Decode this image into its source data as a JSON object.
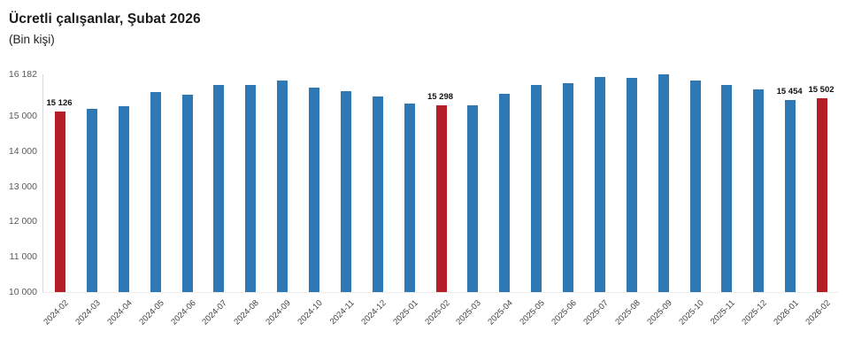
{
  "header": {
    "title": "Ücretli çalışanlar, Şubat 2026",
    "subtitle": "(Bin kişi)"
  },
  "chart_data": {
    "type": "bar",
    "title": "Ücretli çalışanlar, Şubat 2026",
    "subtitle": "(Bin kişi)",
    "categories": [
      "2024-02",
      "2024-03",
      "2024-04",
      "2024-05",
      "2024-06",
      "2024-07",
      "2024-08",
      "2024-09",
      "2024-10",
      "2024-11",
      "2024-12",
      "2025-01",
      "2025-02",
      "2025-03",
      "2025-04",
      "2025-05",
      "2025-06",
      "2025-07",
      "2025-08",
      "2025-09",
      "2025-10",
      "2025-11",
      "2025-12",
      "2026-01",
      "2026-02"
    ],
    "values": [
      15126,
      15200,
      15280,
      15690,
      15600,
      15880,
      15870,
      15995,
      15810,
      15705,
      15555,
      15360,
      15298,
      15310,
      15635,
      15880,
      15930,
      16095,
      16070,
      16182,
      16015,
      15885,
      15760,
      15454,
      15502
    ],
    "highlighted_indices": [
      0,
      12,
      24
    ],
    "labeled_points": [
      {
        "index": 0,
        "label": "15 126"
      },
      {
        "index": 12,
        "label": "15 298"
      },
      {
        "index": 23,
        "label": "15 454"
      },
      {
        "index": 24,
        "label": "15 502"
      }
    ],
    "yticks": [
      {
        "value": 16182,
        "label": "16 182"
      },
      {
        "value": 15000,
        "label": "15 000"
      },
      {
        "value": 14000,
        "label": "14 000"
      },
      {
        "value": 13000,
        "label": "13 000"
      },
      {
        "value": 12000,
        "label": "12 000"
      },
      {
        "value": 11000,
        "label": "11 000"
      },
      {
        "value": 10000,
        "label": "10 000"
      }
    ],
    "ylim": [
      10000,
      16182
    ],
    "xlabel": "",
    "ylabel": "",
    "grid": false,
    "legend": "none",
    "colors": {
      "bar": "#2e79b5",
      "highlight": "#b41e27"
    }
  }
}
